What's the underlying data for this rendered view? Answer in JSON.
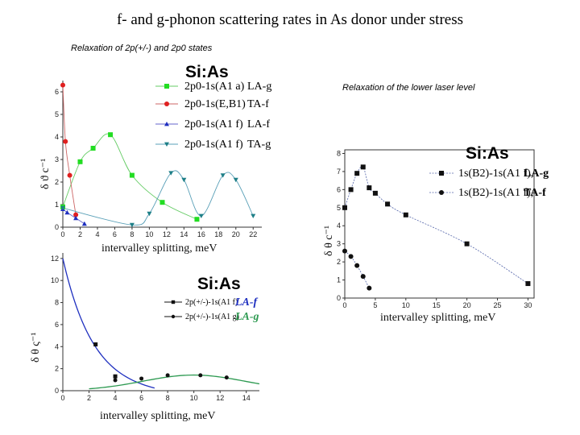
{
  "slide": {
    "title": "f- and g-phonon scattering rates in As donor under stress",
    "caption_left": "Relaxation of 2p(+/-) and 2p0 states",
    "caption_right": "Relaxation of the lower laser level"
  },
  "chart_data": [
    {
      "id": "top_left",
      "type": "scatter",
      "material_label": "Si:As",
      "xlabel": "intervalley splitting, meV",
      "ylabel": "δ ϑ c⁻¹",
      "xlim": [
        0,
        23
      ],
      "ylim": [
        0,
        6.5
      ],
      "xticks": [
        0,
        2,
        4,
        6,
        8,
        10,
        12,
        14,
        16,
        18,
        20,
        22
      ],
      "yticks": [
        0,
        1,
        2,
        3,
        4,
        5,
        6
      ],
      "series": [
        {
          "name": "2p0-1s(A1 a)",
          "phonon": "LA-g",
          "color": "#22dd22",
          "marker": "square",
          "fit_color": "#66cc66",
          "x": [
            0,
            2,
            3.5,
            5.5,
            8,
            11.5,
            15.5
          ],
          "y": [
            0.9,
            2.9,
            3.5,
            4.1,
            2.3,
            1.1,
            0.35
          ]
        },
        {
          "name": "2p0-1s(E,B1)",
          "phonon": "TA-f",
          "color": "#e02020",
          "marker": "circle",
          "fit_color": "#cc6666",
          "x": [
            0,
            0.3,
            0.8,
            1.5
          ],
          "y": [
            6.3,
            3.8,
            2.3,
            0.55
          ]
        },
        {
          "name": "2p0-1s(A1 f)",
          "phonon": "LA-f",
          "color": "#1e2fbf",
          "marker": "triangle",
          "fit_color": "#6666cc",
          "x": [
            0,
            0.5,
            1.5,
            2.5
          ],
          "y": [
            0.8,
            0.65,
            0.4,
            0.15
          ]
        },
        {
          "name": "2p0-1s(A1 f)",
          "phonon": "TA-g",
          "color": "#1e7f87",
          "marker": "triangle-down",
          "fit_color": "#5aa0b8",
          "x": [
            0,
            8,
            10,
            12.5,
            14,
            16,
            18.5,
            20,
            22
          ],
          "y": [
            0.85,
            0.1,
            0.6,
            2.4,
            2.1,
            0.5,
            2.3,
            2.1,
            0.5
          ]
        }
      ]
    },
    {
      "id": "bottom_left",
      "type": "line",
      "material_label": "Si:As",
      "xlabel": "intervalley splitting, meV",
      "ylabel": "δ θ ς⁻¹",
      "xlim": [
        0,
        15
      ],
      "ylim": [
        0,
        12.5
      ],
      "xticks": [
        0,
        2,
        4,
        6,
        8,
        10,
        12,
        14
      ],
      "yticks": [
        0,
        2,
        4,
        6,
        8,
        10,
        12
      ],
      "series": [
        {
          "name": "2p(+/-)-1s(A1 f)",
          "phonon": "LA-f",
          "color": "#1e2fbf",
          "x": [
            2.5,
            4
          ],
          "y": [
            4.2,
            1.3
          ]
        },
        {
          "name": "2p(+/-)-1s(A1 g)",
          "phonon": "LA-g",
          "color": "#2e9a52",
          "x": [
            4,
            6,
            8,
            10.5,
            12.5
          ],
          "y": [
            0.95,
            1.1,
            1.4,
            1.4,
            1.2
          ]
        }
      ]
    },
    {
      "id": "right",
      "type": "line",
      "material_label": "Si:As",
      "xlabel": "intervalley splitting, meV",
      "ylabel": "δ θ c⁻¹",
      "xlim": [
        0,
        31
      ],
      "ylim": [
        0,
        8.2
      ],
      "xticks": [
        0,
        5,
        10,
        15,
        20,
        25,
        30
      ],
      "yticks": [
        0,
        1,
        2,
        3,
        4,
        5,
        6,
        7,
        8
      ],
      "series": [
        {
          "name": "1s(B2)-1s(A1 f)",
          "phonon": "LA-g",
          "color": "#111111",
          "marker": "square",
          "x": [
            0,
            1,
            2,
            3,
            4,
            5,
            7,
            10,
            20,
            30
          ],
          "y": [
            5.0,
            6.0,
            6.9,
            7.25,
            6.1,
            5.8,
            5.2,
            4.6,
            3.0,
            0.8
          ]
        },
        {
          "name": "1s(B2)-1s(A1 f)",
          "phonon": "TA-f",
          "color": "#111111",
          "marker": "circle",
          "x": [
            0,
            1,
            2,
            3,
            4
          ],
          "y": [
            2.6,
            2.3,
            1.8,
            1.2,
            0.55
          ]
        }
      ]
    }
  ]
}
